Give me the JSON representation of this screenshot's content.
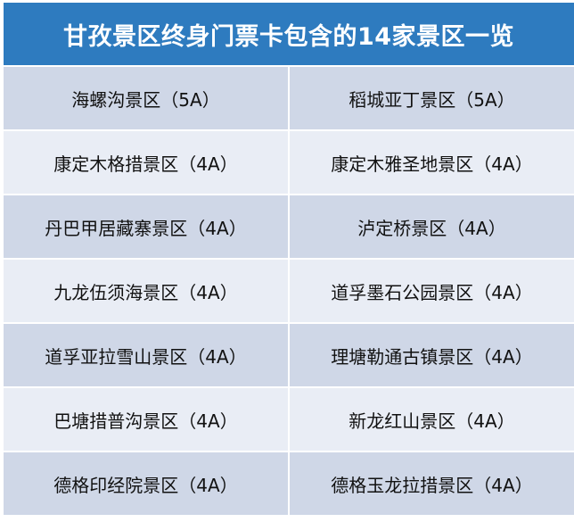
{
  "title": "甘孜景区终身门票卡包含的14家景区一览",
  "colors": {
    "header": "#2e7bbf",
    "row_dark": "#cfd7e7",
    "row_light": "#e9edf5"
  },
  "rows": [
    [
      "海螺沟景区（5A）",
      "稻城亚丁景区（5A）"
    ],
    [
      "康定木格措景区（4A）",
      "康定木雅圣地景区（4A）"
    ],
    [
      "丹巴甲居藏寨景区（4A）",
      "泸定桥景区（4A）"
    ],
    [
      "九龙伍须海景区（4A）",
      "道孚墨石公园景区（4A）"
    ],
    [
      "道孚亚拉雪山景区（4A）",
      "理塘勒通古镇景区（4A）"
    ],
    [
      "巴塘措普沟景区（4A）",
      "新龙红山景区（4A）"
    ],
    [
      "德格印经院景区（4A）",
      "德格玉龙拉措景区（4A）"
    ]
  ]
}
